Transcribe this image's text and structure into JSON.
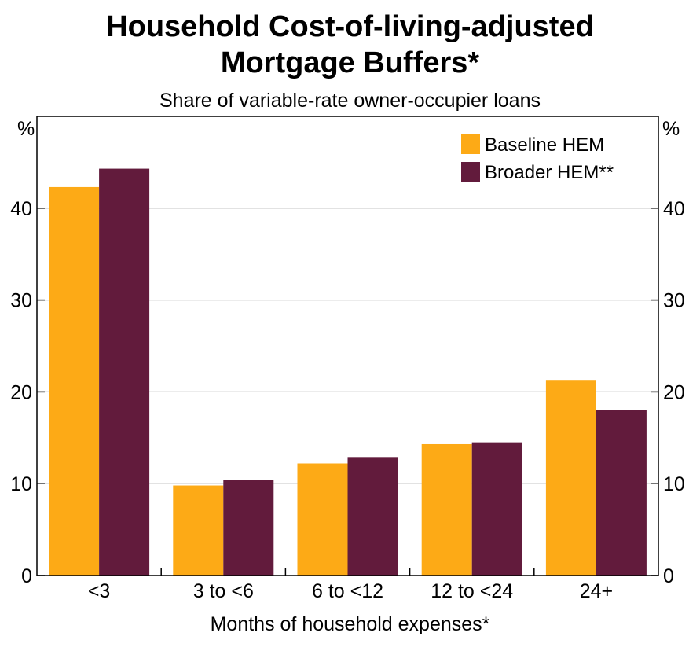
{
  "chart_data": {
    "type": "bar",
    "title_line1": "Household Cost-of-living-adjusted",
    "title_line2": "Mortgage Buffers*",
    "subtitle": "Share of variable-rate owner-occupier loans",
    "xlabel": "Months of household expenses*",
    "y_unit_left": "%",
    "y_unit_right": "%",
    "categories": [
      "<3",
      "3 to <6",
      "6 to <12",
      "12 to <24",
      "24+"
    ],
    "series": [
      {
        "name": "Baseline HEM",
        "color": "#FDAA16",
        "values": [
          42.3,
          9.8,
          12.2,
          14.3,
          21.3
        ]
      },
      {
        "name": "Broader HEM**",
        "color": "#621B3C",
        "values": [
          44.3,
          10.4,
          12.9,
          14.5,
          18.0
        ]
      }
    ],
    "ylim": [
      0,
      50
    ],
    "yticks": [
      0,
      10,
      20,
      30,
      40
    ],
    "grid": true,
    "legend_position": "top-right"
  }
}
